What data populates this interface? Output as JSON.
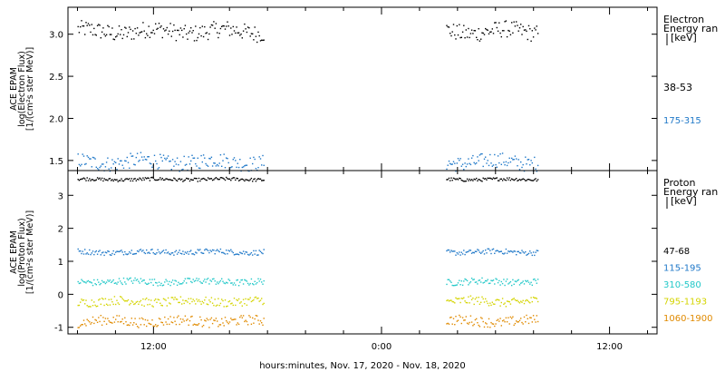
{
  "x_axis": {
    "label": "hours:minutes, Nov. 17, 2020 - Nov. 18, 2020",
    "ticks": [
      "12:00",
      "0:00",
      "12:00"
    ]
  },
  "chart_data": [
    {
      "type": "scatter",
      "panel": "electron",
      "ylabel_lines": [
        "ACE EPAM",
        "log(Electron Flux)",
        "[1/(cm²s ster MeV)]"
      ],
      "legend_title_lines": [
        "Electron",
        "Energy ran",
        "[keV]"
      ],
      "legend_placement": "right",
      "x_range_hours": [
        7.5,
        38.5
      ],
      "ylim": [
        1.38,
        3.32
      ],
      "yticks": [
        "1.5",
        "2.0",
        "2.5",
        "3.0"
      ],
      "gaps_hours": [
        [
          17.8,
          27.4
        ]
      ],
      "series": [
        {
          "name": "38-53",
          "color": "#000000",
          "level": 3.04,
          "spread": 0.1
        },
        {
          "name": "175-315",
          "color": "#1f78c8",
          "level": 1.49,
          "spread": 0.09
        }
      ]
    },
    {
      "type": "scatter",
      "panel": "proton",
      "ylabel_lines": [
        "ACE EPAM",
        "log(Proton Flux)",
        "[1/(cm²s ster MeV)]"
      ],
      "legend_title_lines": [
        "Proton",
        "Energy ran",
        "[keV]"
      ],
      "legend_placement": "right",
      "x_range_hours": [
        7.5,
        38.5
      ],
      "ylim": [
        -1.2,
        3.75
      ],
      "yticks": [
        "-1",
        "0",
        "1",
        "2",
        "3"
      ],
      "gaps_hours": [
        [
          17.8,
          27.4
        ]
      ],
      "series": [
        {
          "name": "47-68",
          "color": "#000000",
          "level": 3.5,
          "spread": 0.05
        },
        {
          "name": "115-195",
          "color": "#1f78c8",
          "level": 1.3,
          "spread": 0.08
        },
        {
          "name": "310-580",
          "color": "#22c8c8",
          "level": 0.4,
          "spread": 0.1
        },
        {
          "name": "795-1193",
          "color": "#d4d400",
          "level": -0.2,
          "spread": 0.13
        },
        {
          "name": "1060-1900",
          "color": "#e08a00",
          "level": -0.8,
          "spread": 0.15
        }
      ]
    }
  ]
}
